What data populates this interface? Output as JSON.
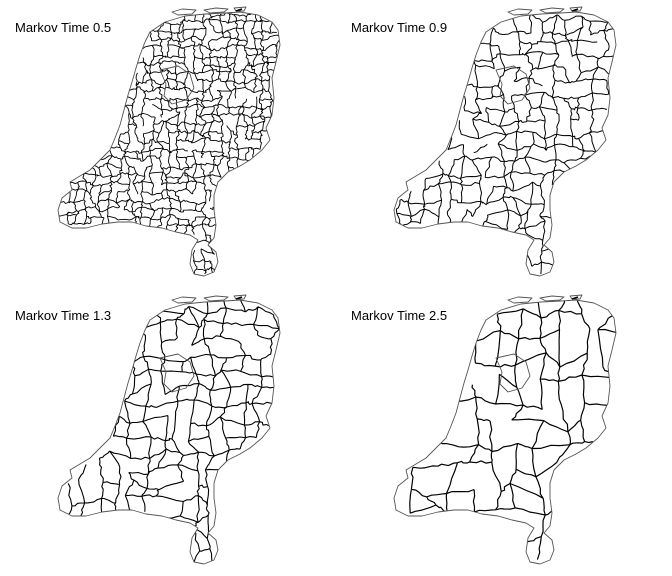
{
  "panels": [
    {
      "title": "Markov Time 0.5",
      "cluster_density": "fine"
    },
    {
      "title": "Markov Time 0.9",
      "cluster_density": "medium"
    },
    {
      "title": "Markov Time 1.3",
      "cluster_density": "medium-coarse"
    },
    {
      "title": "Markov Time 2.5",
      "cluster_density": "coarse"
    }
  ],
  "colors": {
    "background": "#ffffff",
    "boundary": "#000000",
    "coastline": "#555555"
  }
}
